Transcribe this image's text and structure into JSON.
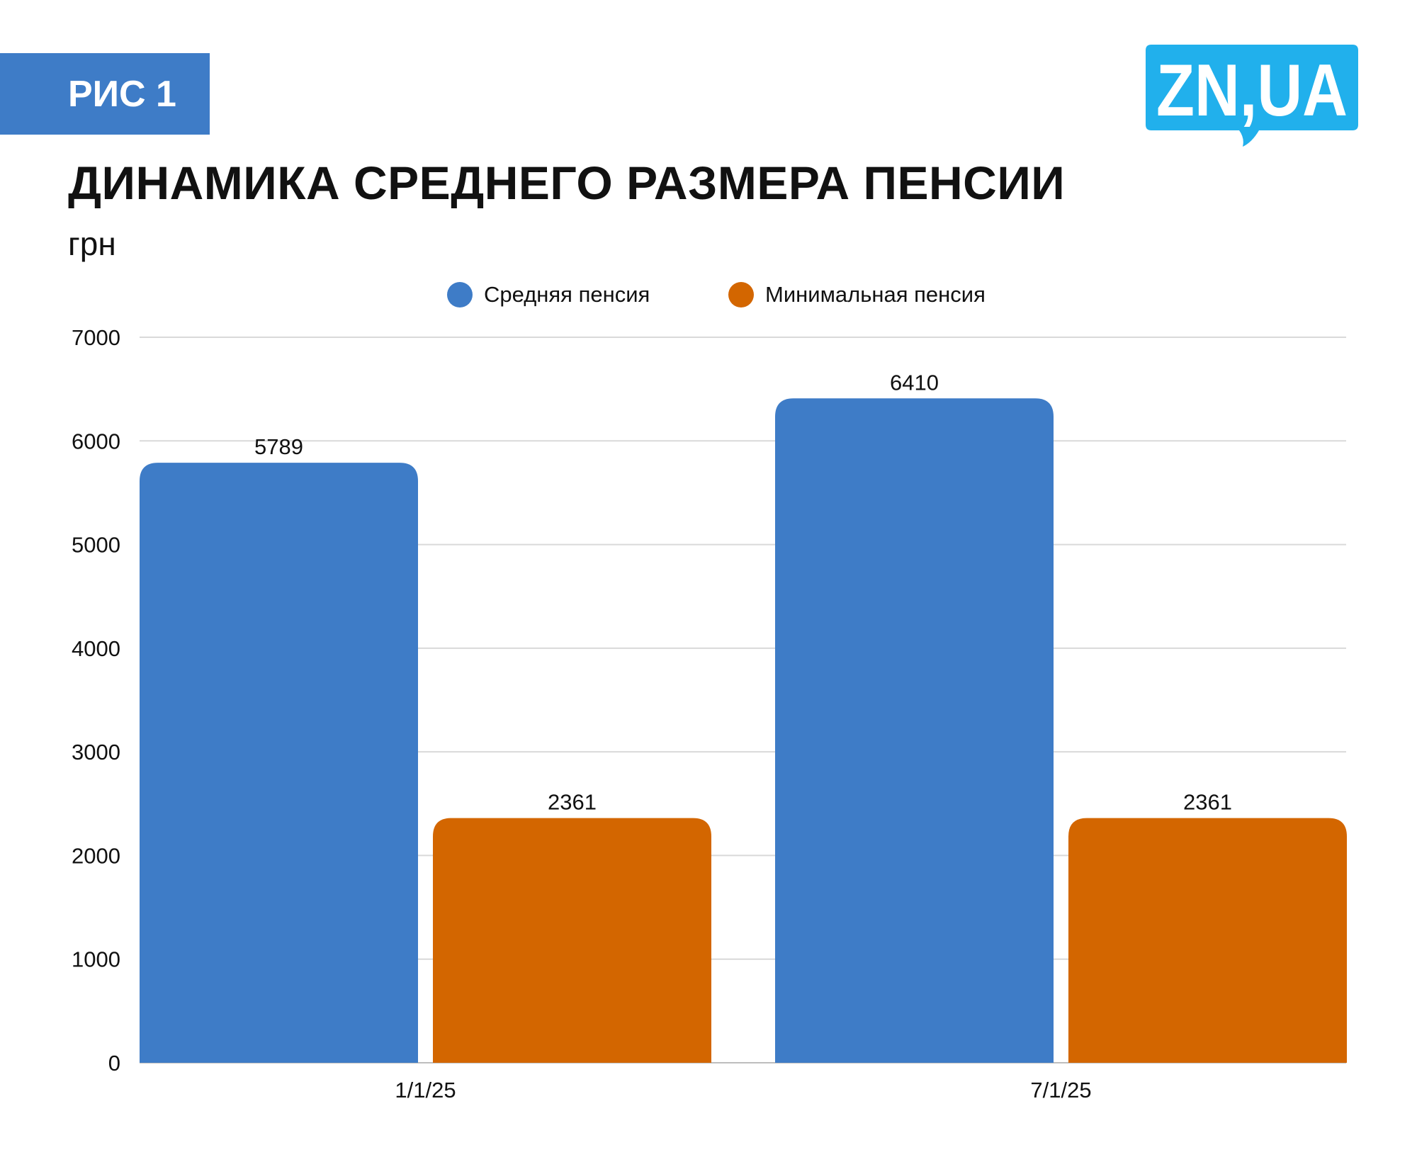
{
  "badge": {
    "label": "РИС 1"
  },
  "logo": {
    "text": "ZN,UA"
  },
  "header": {
    "title": "ДИНАМИКА СРЕДНЕГО РАЗМЕРА ПЕНСИИ",
    "unit": "грн"
  },
  "colors": {
    "accent": "#3E7CC7",
    "orange": "#D36600",
    "logo": "#21B0EC",
    "grid": "#D9D9D9"
  },
  "chart_data": {
    "type": "bar",
    "title": "ДИНАМИКА СРЕДНЕГО РАЗМЕРА ПЕНСИИ",
    "ylabel": "грн",
    "xlabel": "",
    "categories": [
      "1/1/25",
      "7/1/25"
    ],
    "series": [
      {
        "name": "Средняя пенсия",
        "values": [
          5789,
          6410
        ],
        "color": "#3E7CC7"
      },
      {
        "name": "Минимальная пенсия",
        "values": [
          2361,
          2361
        ],
        "color": "#D36600"
      }
    ],
    "ylim": [
      0,
      7000
    ],
    "yticks": [
      0,
      1000,
      2000,
      3000,
      4000,
      5000,
      6000,
      7000
    ],
    "grid": true,
    "legend": "top-center",
    "data_labels": true
  }
}
